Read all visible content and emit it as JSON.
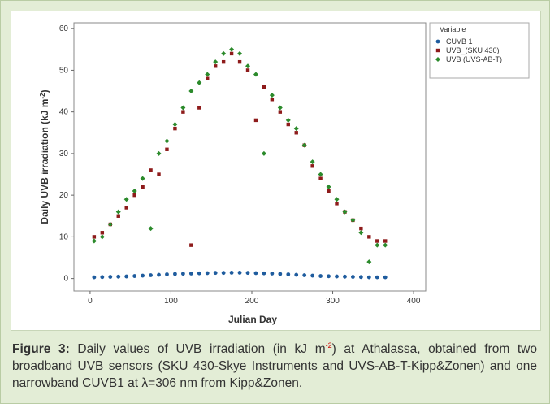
{
  "chart_data": {
    "type": "scatter",
    "ylabel": {
      "text": "Daily UVB irradiation (kJ m",
      "sup": "-2",
      "tail": ")"
    },
    "xlabel": "Julian Day",
    "legend_title": "Variable",
    "legend": "upper right outside",
    "x": [
      5,
      15,
      25,
      35,
      45,
      55,
      65,
      75,
      85,
      95,
      105,
      115,
      125,
      135,
      145,
      155,
      165,
      175,
      185,
      195,
      205,
      215,
      225,
      235,
      245,
      255,
      265,
      275,
      285,
      295,
      305,
      315,
      325,
      335,
      345,
      355,
      365
    ],
    "series": [
      {
        "name": "CUVB 1",
        "color": "#1f5c9e",
        "marker": "circle",
        "values": [
          0.3,
          0.35,
          0.4,
          0.45,
          0.5,
          0.6,
          0.7,
          0.8,
          0.9,
          1.0,
          1.1,
          1.15,
          1.2,
          1.25,
          1.3,
          1.35,
          1.35,
          1.4,
          1.4,
          1.35,
          1.3,
          1.25,
          1.2,
          1.1,
          1.0,
          0.9,
          0.8,
          0.7,
          0.6,
          0.55,
          0.5,
          0.45,
          0.4,
          0.35,
          0.3,
          0.3,
          0.3
        ]
      },
      {
        "name": "UVB_(SKU 430)",
        "color": "#8e1b1b",
        "marker": "square",
        "values": [
          10,
          11,
          13,
          15,
          17,
          20,
          22,
          26,
          25,
          31,
          36,
          40,
          8,
          41,
          48,
          51,
          52,
          54,
          52,
          50,
          38,
          46,
          43,
          40,
          37,
          35,
          32,
          27,
          24,
          21,
          18,
          16,
          14,
          12,
          10,
          9,
          9
        ]
      },
      {
        "name": "UVB (UVS-AB-T)",
        "color": "#2b8a2b",
        "marker": "diamond",
        "values": [
          9,
          10,
          13,
          16,
          19,
          21,
          24,
          12,
          30,
          33,
          37,
          41,
          45,
          47,
          49,
          52,
          54,
          55,
          54,
          51,
          49,
          30,
          44,
          41,
          38,
          36,
          32,
          28,
          25,
          22,
          19,
          16,
          14,
          11,
          4,
          8,
          8
        ]
      }
    ],
    "xlim": [
      -20,
      415
    ],
    "ylim": [
      -3,
      61.4
    ],
    "xticks": [
      0,
      100,
      200,
      300,
      400
    ],
    "yticks": [
      0,
      10,
      20,
      30,
      40,
      50,
      60
    ],
    "caption": {
      "label": "Figure 3:",
      "text": " Daily values of UVB irradiation (in kJ m",
      "sup": "-2",
      "tail": ") at Athalassa, obtained from two broadband UVB sensors (SKU 430-Skye Instruments and UVS-AB-T-Kipp&Zonen) and one narrowband CUVB1 at λ=306 nm from Kipp&Zonen."
    }
  }
}
